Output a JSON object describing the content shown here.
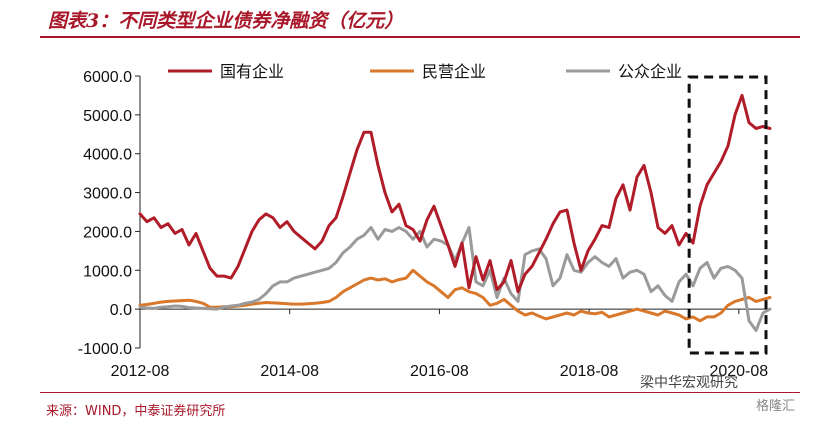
{
  "title": "图表3：不同类型企业债券净融资（亿元）",
  "source": "来源：WIND，中泰证券研究所",
  "watermark": "梁中华宏观研究",
  "watermark2": "格隆汇",
  "colors": {
    "accent": "#a8182a",
    "soe": "#b01c28",
    "private": "#d9782a",
    "public": "#9a9a9a",
    "axis": "#222222"
  },
  "chart_data": {
    "type": "line",
    "ylim": [
      -1000,
      6000
    ],
    "yticks": [
      "6000.0",
      "5000.0",
      "4000.0",
      "3000.0",
      "2000.0",
      "1000.0",
      "0.0",
      "-1000.0"
    ],
    "ytick_values": [
      6000,
      5000,
      4000,
      3000,
      2000,
      1000,
      0,
      -1000
    ],
    "xticks": [
      "2012-08",
      "2014-08",
      "2016-08",
      "2018-08",
      "2020-08"
    ],
    "x_start": "2012-08",
    "x_end": "2021-01",
    "legend_position": "top",
    "highlight_box": {
      "from": "2020-01",
      "to": "2021-01",
      "style": "dashed"
    },
    "series": [
      {
        "name": "国有企业",
        "color": "#b01c28",
        "values": [
          2450,
          2250,
          2350,
          2100,
          2200,
          1950,
          2050,
          1650,
          1950,
          1500,
          1050,
          850,
          850,
          800,
          1100,
          1550,
          2000,
          2300,
          2450,
          2350,
          2100,
          2250,
          2000,
          1850,
          1700,
          1550,
          1750,
          2150,
          2350,
          2900,
          3500,
          4100,
          4550,
          4550,
          3700,
          3000,
          2500,
          2700,
          2150,
          2050,
          1750,
          2300,
          2650,
          2150,
          1650,
          1100,
          1700,
          550,
          1350,
          750,
          1250,
          500,
          700,
          1250,
          450,
          900,
          1100,
          1450,
          1800,
          2200,
          2500,
          2550,
          1700,
          1000,
          1500,
          1800,
          2150,
          2100,
          2850,
          3200,
          2550,
          3400,
          3700,
          3000,
          2100,
          1950,
          2150,
          1650,
          1950,
          1700,
          2650,
          3200,
          3500,
          3800,
          4200,
          5000,
          5500,
          4800,
          4650,
          4700,
          4650
        ]
      },
      {
        "name": "民营企业",
        "color": "#d9782a",
        "values": [
          100,
          120,
          150,
          180,
          200,
          210,
          220,
          230,
          200,
          150,
          50,
          50,
          60,
          60,
          80,
          100,
          130,
          150,
          170,
          160,
          150,
          140,
          130,
          130,
          140,
          150,
          170,
          200,
          300,
          450,
          550,
          650,
          750,
          800,
          750,
          780,
          700,
          760,
          800,
          1000,
          850,
          700,
          600,
          450,
          300,
          500,
          550,
          450,
          400,
          300,
          100,
          150,
          250,
          100,
          -50,
          -150,
          -100,
          -180,
          -250,
          -200,
          -150,
          -100,
          -150,
          -50,
          -100,
          -120,
          -80,
          -200,
          -150,
          -100,
          -50,
          0,
          -50,
          -100,
          -150,
          -50,
          -100,
          -150,
          -250,
          -200,
          -300,
          -200,
          -200,
          -100,
          100,
          200,
          250,
          300,
          200,
          250,
          300
        ]
      },
      {
        "name": "公众企业",
        "color": "#9a9a9a",
        "values": [
          50,
          30,
          20,
          50,
          60,
          80,
          70,
          40,
          30,
          20,
          10,
          0,
          50,
          80,
          100,
          150,
          180,
          250,
          400,
          600,
          700,
          700,
          800,
          850,
          900,
          950,
          1000,
          1050,
          1200,
          1450,
          1600,
          1800,
          1900,
          2100,
          1800,
          2050,
          2000,
          2100,
          2000,
          1800,
          2000,
          1600,
          1800,
          1750,
          1650,
          1250,
          1700,
          2100,
          700,
          600,
          1000,
          300,
          800,
          400,
          200,
          1400,
          1500,
          1550,
          1300,
          600,
          800,
          1400,
          1000,
          950,
          1200,
          1350,
          1200,
          1100,
          1300,
          800,
          950,
          1000,
          900,
          450,
          600,
          350,
          200,
          700,
          900,
          600,
          1050,
          1200,
          800,
          1050,
          1100,
          1000,
          800,
          -300,
          -550,
          -100,
          0
        ]
      }
    ]
  }
}
